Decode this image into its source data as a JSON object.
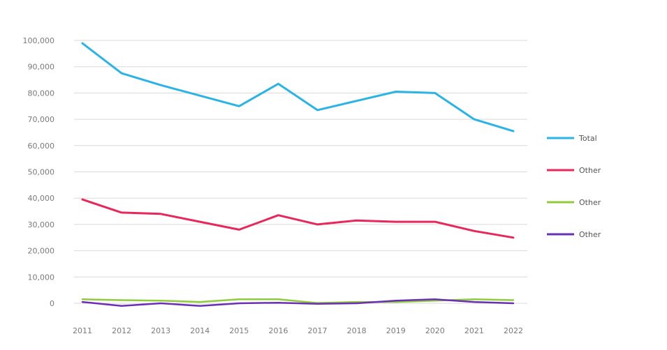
{
  "chart_data": {
    "type": "line",
    "title": "",
    "xlabel": "",
    "ylabel": "",
    "categories": [
      "2011",
      "2012",
      "2013",
      "2014",
      "2015",
      "2016",
      "2017",
      "2018",
      "2019",
      "2020",
      "2021",
      "2022"
    ],
    "ylim": [
      0,
      100000
    ],
    "yticks": [
      0,
      10000,
      20000,
      30000,
      40000,
      50000,
      60000,
      70000,
      80000,
      90000,
      100000
    ],
    "ytick_labels": [
      "0",
      "10,000",
      "20,000",
      "30,000",
      "40,000",
      "50,000",
      "60,000",
      "70,000",
      "80,000",
      "90,000",
      "100,000"
    ],
    "grid": true,
    "legend": "right",
    "series": [
      {
        "name": "Total",
        "color": "#2ab4e6",
        "values": [
          98900,
          87500,
          83000,
          79000,
          75000,
          83500,
          73500,
          77000,
          80500,
          80000,
          70000,
          65500
        ]
      },
      {
        "name": "Other",
        "color": "#e8285a",
        "values": [
          39500,
          34500,
          34000,
          31000,
          28000,
          33500,
          30000,
          31500,
          31000,
          31000,
          27500,
          25000
        ]
      },
      {
        "name": "Other",
        "color": "#8fcc3c",
        "values": [
          1500,
          1200,
          1000,
          500,
          1500,
          1500,
          100,
          500,
          500,
          1000,
          1500,
          1200
        ]
      },
      {
        "name": "Other",
        "color": "#6b2fb5",
        "values": [
          500,
          -1000,
          0,
          -1000,
          0,
          200,
          -200,
          0,
          1000,
          1500,
          500,
          0
        ]
      }
    ]
  }
}
